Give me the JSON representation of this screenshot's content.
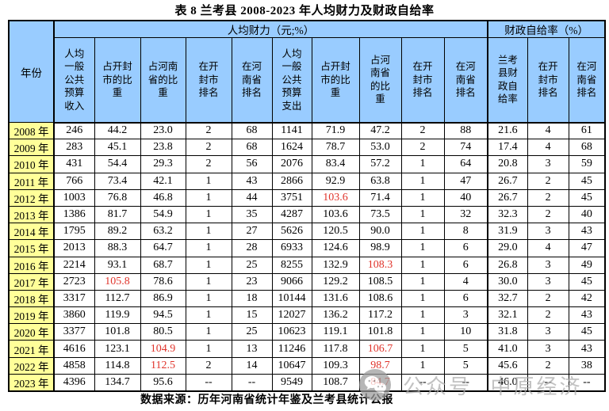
{
  "title": "表 8 兰考县 2008-2023 年人均财力及财政自给率",
  "table": {
    "year_header": "年份",
    "group_headers": [
      "人均财力（元;%）",
      "财政自给率（%）"
    ],
    "sub_headers": [
      "人均\n一般\n公共\n预算\n收入",
      "占开封\n市的比\n重",
      "占河南\n省的比\n重",
      "在开\n封市\n排名",
      "在河\n南省\n排名",
      "人均\n一般\n公共\n预算\n支出",
      "占开封\n市的比\n重",
      "占河\n南省\n的比\n重",
      "在开\n封市\n排名",
      "在河\n南省\n排名",
      "兰考\n县财\n政自\n给率",
      "在开\n封市\n排名",
      "在河\n南省\n排名"
    ],
    "rows": [
      {
        "year": "2008 年",
        "values": [
          "246",
          "44.2",
          "23.0",
          "2",
          "68",
          "1141",
          "71.9",
          "47.2",
          "2",
          "88",
          "21.6",
          "4",
          "61"
        ],
        "red": []
      },
      {
        "year": "2009 年",
        "values": [
          "283",
          "45.1",
          "23.8",
          "2",
          "68",
          "1624",
          "78.7",
          "53.0",
          "2",
          "74",
          "17.4",
          "4",
          "68"
        ],
        "red": []
      },
      {
        "year": "2010 年",
        "values": [
          "431",
          "54.4",
          "29.3",
          "2",
          "56",
          "2076",
          "83.4",
          "57.2",
          "1",
          "64",
          "20.8",
          "3",
          "59"
        ],
        "red": []
      },
      {
        "year": "2011 年",
        "values": [
          "766",
          "73.4",
          "42.1",
          "1",
          "43",
          "2866",
          "92.9",
          "63.8",
          "1",
          "47",
          "26.7",
          "2",
          "45"
        ],
        "red": []
      },
      {
        "year": "2012 年",
        "values": [
          "1003",
          "76.8",
          "46.8",
          "1",
          "44",
          "3751",
          "103.6",
          "71.4",
          "1",
          "40",
          "26.7",
          "2",
          "45"
        ],
        "red": [
          6
        ]
      },
      {
        "year": "2013 年",
        "values": [
          "1386",
          "81.7",
          "54.9",
          "1",
          "35",
          "4287",
          "103.6",
          "73.5",
          "1",
          "32",
          "32.3",
          "2",
          "40"
        ],
        "red": []
      },
      {
        "year": "2014 年",
        "values": [
          "1795",
          "89.2",
          "63.2",
          "1",
          "27",
          "5626",
          "120.5",
          "90.0",
          "1",
          "8",
          "31.9",
          "3",
          "43"
        ],
        "red": []
      },
      {
        "year": "2015 年",
        "values": [
          "2013",
          "88.3",
          "64.7",
          "1",
          "28",
          "6933",
          "124.6",
          "98.9",
          "1",
          "6",
          "29.0",
          "4",
          "47"
        ],
        "red": []
      },
      {
        "year": "2016 年",
        "values": [
          "2214",
          "93.1",
          "68.7",
          "1",
          "25",
          "8255",
          "132.9",
          "108.3",
          "1",
          "6",
          "26.8",
          "3",
          "49"
        ],
        "red": [
          7
        ]
      },
      {
        "year": "2017 年",
        "values": [
          "2723",
          "105.8",
          "78.6",
          "1",
          "23",
          "9066",
          "129.2",
          "108.5",
          "1",
          "4",
          "30.0",
          "3",
          "45"
        ],
        "red": [
          1
        ]
      },
      {
        "year": "2018 年",
        "values": [
          "3317",
          "112.7",
          "86.9",
          "1",
          "18",
          "10144",
          "131.6",
          "108.6",
          "1",
          "6",
          "32.7",
          "2",
          "42"
        ],
        "red": []
      },
      {
        "year": "2019 年",
        "values": [
          "3860",
          "119.9",
          "94.5",
          "1",
          "15",
          "12027",
          "136.2",
          "117.2",
          "1",
          "3",
          "32.1",
          "2",
          "43"
        ],
        "red": []
      },
      {
        "year": "2020 年",
        "values": [
          "3377",
          "101.8",
          "80.5",
          "1",
          "25",
          "10623",
          "119.1",
          "101.8",
          "1",
          "10",
          "31.8",
          "3",
          "45"
        ],
        "red": []
      },
      {
        "year": "2021 年",
        "values": [
          "4616",
          "123.1",
          "104.9",
          "1",
          "13",
          "11246",
          "117.8",
          "106.7",
          "1",
          "5",
          "41.0",
          "3",
          "43"
        ],
        "red": [
          2,
          7
        ]
      },
      {
        "year": "2022 年",
        "values": [
          "4858",
          "114.8",
          "112.5",
          "2",
          "14",
          "10647",
          "109.3",
          "98.7",
          "1",
          "5",
          "45.6",
          "2",
          "38"
        ],
        "red": [
          2,
          7
        ]
      },
      {
        "year": "2023 年",
        "values": [
          "4396",
          "134.7",
          "95.6",
          "--",
          "--",
          "9549",
          "108.7",
          "84.7",
          "--",
          "--",
          "46.0",
          "--",
          "--"
        ],
        "red": [
          7
        ]
      }
    ]
  },
  "source": "数据来源：历年河南省统计年鉴及兰考县统计公报",
  "watermark": {
    "icon": "wechat-icon",
    "text": "公众号 中原经济"
  },
  "colors": {
    "header_bg": "#99ccff",
    "year_bg": "#ffff99",
    "red_text": "#e0342b",
    "border": "#000000",
    "watermark": "#ababab"
  }
}
